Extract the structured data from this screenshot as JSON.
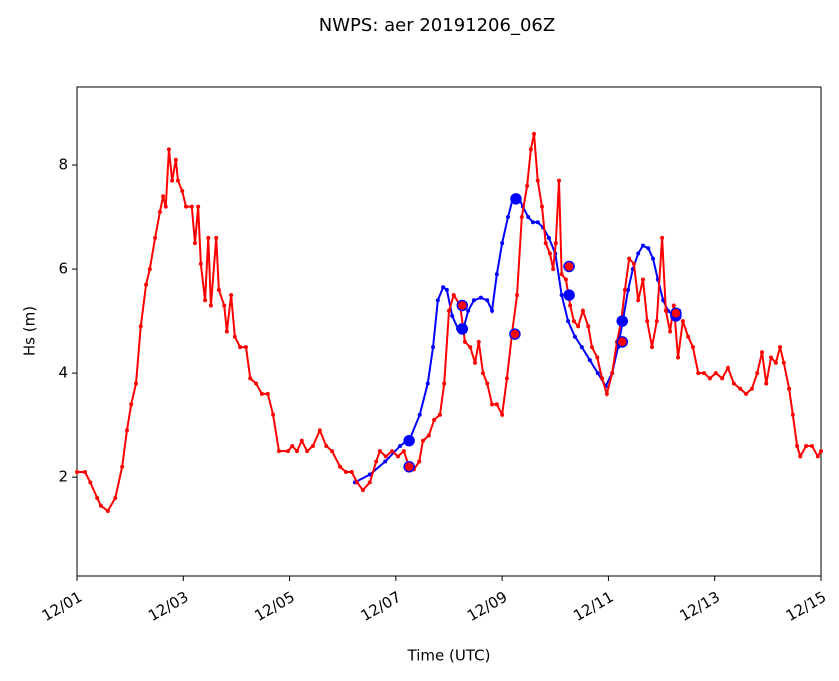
{
  "chart_data": {
    "type": "line",
    "title": "NWPS: aer 20191206_06Z",
    "xlabel": "Time (UTC)",
    "ylabel": "Hs (m)",
    "xlim": [
      0,
      14
    ],
    "ylim": [
      0.1,
      9.5
    ],
    "xticks": [
      {
        "value": 0,
        "label": "12/01"
      },
      {
        "value": 2,
        "label": "12/03"
      },
      {
        "value": 4,
        "label": "12/05"
      },
      {
        "value": 6,
        "label": "12/07"
      },
      {
        "value": 8,
        "label": "12/09"
      },
      {
        "value": 10,
        "label": "12/11"
      },
      {
        "value": 12,
        "label": "12/13"
      },
      {
        "value": 14,
        "label": "12/15"
      }
    ],
    "yticks": [
      2,
      4,
      6,
      8
    ],
    "grid": false,
    "series": [
      {
        "style": "line",
        "color": "#0000ff",
        "x": [
          5.23,
          5.51,
          5.8,
          6.08,
          6.27,
          6.45,
          6.6,
          6.7,
          6.79,
          6.89,
          6.96,
          7.06,
          7.17,
          7.26,
          7.36,
          7.47,
          7.6,
          7.72,
          7.81,
          7.9,
          8.0,
          8.11,
          8.2,
          8.3,
          8.39,
          8.49,
          8.58,
          8.67,
          8.77,
          8.88,
          9.0,
          9.12,
          9.24,
          9.37,
          9.5,
          9.65,
          9.8,
          9.95,
          10.07,
          10.18,
          10.27,
          10.37,
          10.46,
          10.56,
          10.65,
          10.75,
          10.84,
          10.93,
          11.03,
          11.12,
          11.23,
          11.33
        ],
        "values": [
          1.9,
          2.05,
          2.3,
          2.6,
          2.75,
          3.2,
          3.8,
          4.5,
          5.4,
          5.65,
          5.6,
          5.1,
          4.85,
          4.8,
          5.2,
          5.4,
          5.45,
          5.4,
          5.2,
          5.9,
          6.5,
          7.0,
          7.35,
          7.4,
          7.2,
          7.0,
          6.9,
          6.9,
          6.8,
          6.6,
          6.3,
          5.5,
          5.0,
          4.7,
          4.5,
          4.25,
          4.0,
          3.75,
          4.0,
          4.5,
          5.0,
          5.6,
          6.0,
          6.3,
          6.45,
          6.4,
          6.2,
          5.8,
          5.4,
          5.2,
          5.1,
          5.2
        ]
      },
      {
        "style": "line",
        "color": "#ff0000",
        "x": [
          0,
          0.15,
          0.25,
          0.38,
          0.45,
          0.58,
          0.72,
          0.85,
          0.94,
          1.02,
          1.11,
          1.2,
          1.3,
          1.37,
          1.47,
          1.56,
          1.62,
          1.67,
          1.73,
          1.79,
          1.86,
          1.9,
          1.98,
          2.05,
          2.16,
          2.22,
          2.28,
          2.33,
          2.41,
          2.47,
          2.52,
          2.62,
          2.67,
          2.77,
          2.82,
          2.9,
          2.97,
          3.07,
          3.18,
          3.26,
          3.37,
          3.48,
          3.59,
          3.69,
          3.8,
          3.97,
          4.05,
          4.14,
          4.23,
          4.33,
          4.44,
          4.57,
          4.69,
          4.8,
          4.95,
          5.06,
          5.17,
          5.27,
          5.38,
          5.51,
          5.63,
          5.7,
          5.81,
          5.93,
          6.04,
          6.15,
          6.25,
          6.34,
          6.44,
          6.51,
          6.62,
          6.72,
          6.83,
          6.91,
          7.0,
          7.09,
          7.21,
          7.3,
          7.4,
          7.49,
          7.56,
          7.64,
          7.72,
          7.81,
          7.9,
          8.0,
          8.09,
          8.19,
          8.28,
          8.37,
          8.47,
          8.54,
          8.6,
          8.67,
          8.75,
          8.82,
          8.9,
          8.96,
          9.01,
          9.07,
          9.12,
          9.2,
          9.28,
          9.35,
          9.43,
          9.52,
          9.62,
          9.69,
          9.79,
          9.88,
          9.97,
          10.07,
          10.16,
          10.24,
          10.31,
          10.39,
          10.48,
          10.56,
          10.65,
          10.73,
          10.82,
          10.91,
          11.01,
          11.08,
          11.16,
          11.23,
          11.31,
          11.4,
          11.5,
          11.59,
          11.69,
          11.8,
          11.91,
          12.02,
          12.14,
          12.25,
          12.36,
          12.48,
          12.59,
          12.7,
          12.8,
          12.89,
          12.97,
          13.06,
          13.15,
          13.23,
          13.3,
          13.4,
          13.47,
          13.55,
          13.61,
          13.72,
          13.83,
          13.94,
          14.0
        ],
        "values": [
          2.1,
          2.1,
          1.9,
          1.6,
          1.45,
          1.35,
          1.6,
          2.2,
          2.9,
          3.4,
          3.8,
          4.9,
          5.7,
          6.0,
          6.6,
          7.1,
          7.4,
          7.2,
          8.3,
          7.7,
          8.1,
          7.7,
          7.5,
          7.2,
          7.2,
          6.5,
          7.2,
          6.1,
          5.4,
          6.6,
          5.3,
          6.6,
          5.6,
          5.3,
          4.8,
          5.5,
          4.7,
          4.5,
          4.5,
          3.9,
          3.8,
          3.6,
          3.6,
          3.2,
          2.5,
          2.5,
          2.6,
          2.5,
          2.7,
          2.5,
          2.6,
          2.9,
          2.6,
          2.5,
          2.2,
          2.1,
          2.1,
          1.9,
          1.75,
          1.9,
          2.3,
          2.5,
          2.4,
          2.5,
          2.4,
          2.5,
          2.2,
          2.15,
          2.3,
          2.7,
          2.8,
          3.1,
          3.2,
          3.8,
          5.2,
          5.5,
          5.3,
          4.6,
          4.5,
          4.2,
          4.6,
          4.0,
          3.8,
          3.4,
          3.4,
          3.2,
          3.9,
          4.8,
          5.5,
          7.0,
          7.6,
          8.3,
          8.6,
          7.7,
          7.2,
          6.5,
          6.3,
          6.0,
          6.5,
          7.7,
          5.9,
          5.8,
          5.3,
          5.0,
          4.9,
          5.2,
          4.9,
          4.5,
          4.3,
          3.9,
          3.6,
          4.0,
          4.6,
          5.0,
          5.6,
          6.2,
          6.1,
          5.4,
          5.8,
          5.0,
          4.5,
          5.0,
          6.6,
          5.2,
          4.8,
          5.3,
          4.3,
          5.0,
          4.7,
          4.5,
          4.0,
          4.0,
          3.9,
          4.0,
          3.9,
          4.1,
          3.8,
          3.7,
          3.6,
          3.7,
          4.0,
          4.4,
          3.8,
          4.3,
          4.2,
          4.5,
          4.2,
          3.7,
          3.2,
          2.6,
          2.4,
          2.6,
          2.6,
          2.4,
          2.5
        ]
      },
      {
        "style": "points",
        "color": "#0000ff",
        "edgecolor": "#0000ff",
        "x": [
          6.25,
          7.25,
          8.26,
          9.26,
          10.26,
          11.27
        ],
        "values": [
          2.7,
          4.85,
          7.35,
          5.5,
          5.0,
          5.1
        ]
      },
      {
        "style": "points",
        "color": "#ff0000",
        "edgecolor": "#0000ff",
        "x": [
          6.25,
          7.25,
          8.24,
          9.26,
          10.26,
          11.27
        ],
        "values": [
          2.2,
          5.3,
          4.75,
          6.05,
          4.6,
          5.15
        ]
      }
    ]
  }
}
